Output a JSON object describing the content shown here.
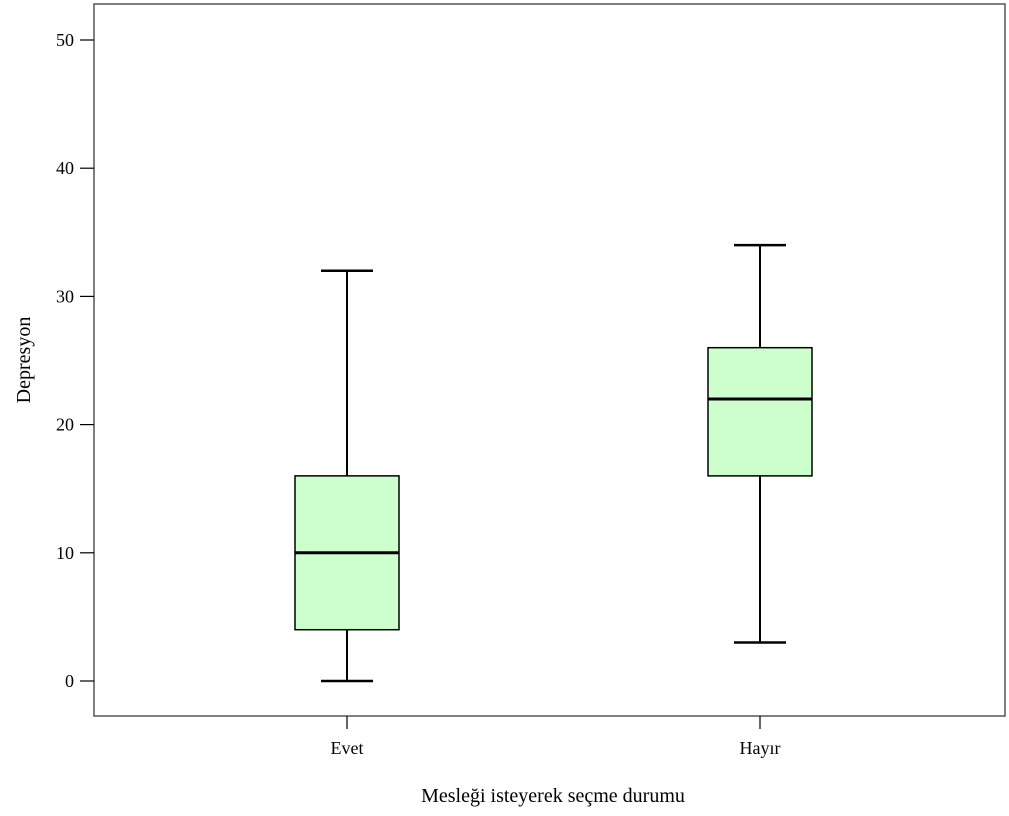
{
  "chart_data": {
    "type": "boxplot",
    "xlabel": "Mesleği isteyerek seçme durumu",
    "ylabel": "Depresyon",
    "ylim": [
      -2.7,
      53
    ],
    "y_ticks": [
      0,
      10,
      20,
      30,
      40,
      50
    ],
    "categories": [
      "Evet",
      "Hayır"
    ],
    "boxes": [
      {
        "category": "Evet",
        "min": 0,
        "q1": 4,
        "median": 10,
        "q3": 16,
        "max": 32
      },
      {
        "category": "Hayır",
        "min": 3,
        "q1": 16,
        "median": 22,
        "q3": 26,
        "max": 34
      }
    ],
    "box_color": "#ccffcc",
    "grid": false,
    "legend": "none"
  }
}
